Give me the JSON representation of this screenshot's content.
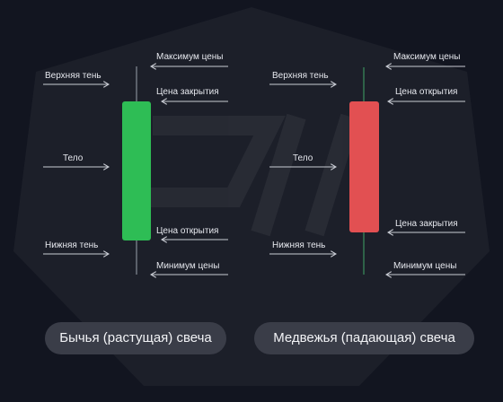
{
  "colors": {
    "background": "#121520",
    "bullish_body": "#2ebd55",
    "bearish_body": "#e25052",
    "wick": "#9aa0ac",
    "arrow": "#c9ccd4",
    "pill": "#3a3d48"
  },
  "bullish": {
    "caption": "Бычья (растущая) свеча",
    "labels": {
      "upper_wick": "Верхняя тень",
      "body": "Тело",
      "lower_wick": "Нижняя тень",
      "high": "Максимум цены",
      "close": "Цена закрытия",
      "open": "Цена открытия",
      "low": "Минимум цены"
    }
  },
  "bearish": {
    "caption": "Медвежья (падающая) свеча",
    "labels": {
      "upper_wick": "Верхняя тень",
      "body": "Тело",
      "lower_wick": "Нижняя тень",
      "high": "Максимум цены",
      "open": "Цена открытия",
      "close": "Цена закрытия",
      "low": "Минимум цены"
    }
  }
}
